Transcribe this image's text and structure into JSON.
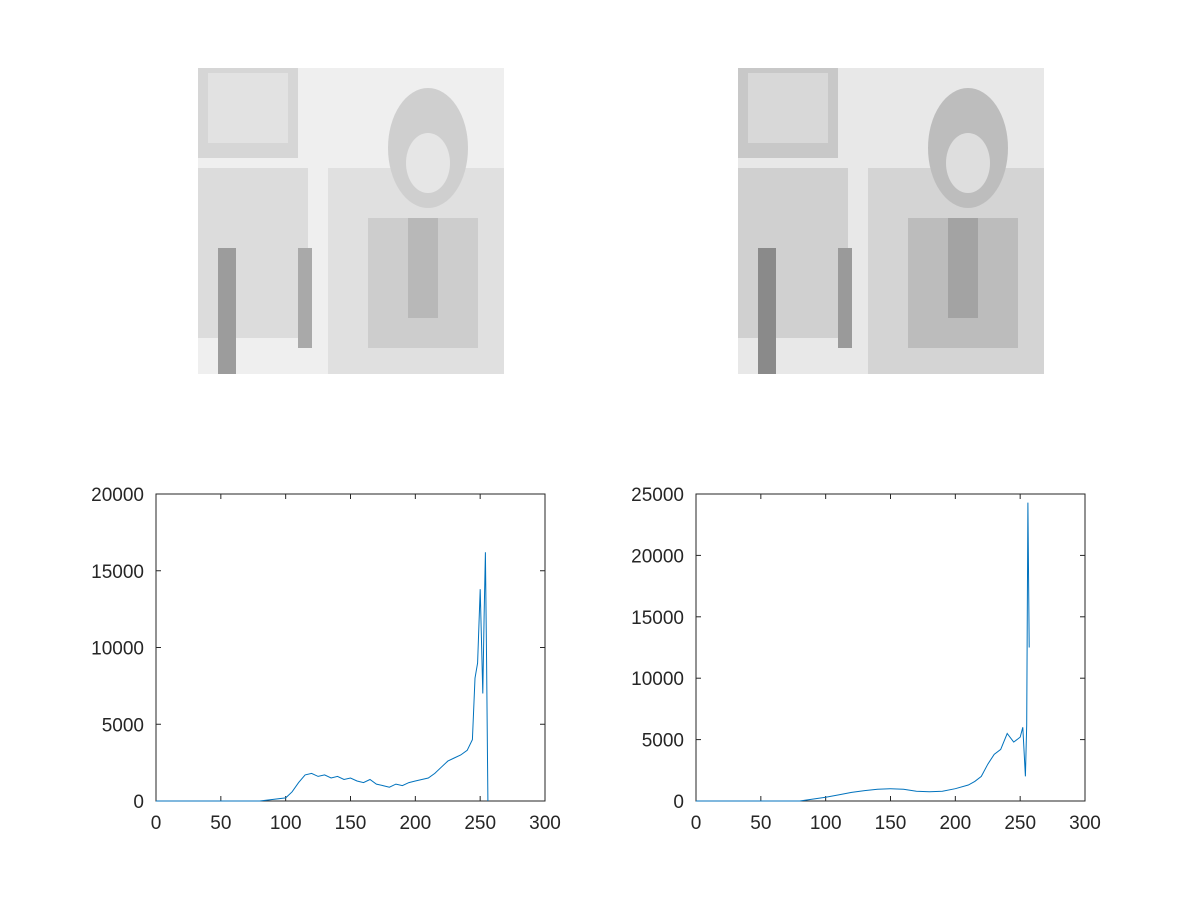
{
  "figure": {
    "background": "#ffffff",
    "line_color": "#0072bd",
    "axis_color": "#262626"
  },
  "images": [
    {
      "name": "original-image",
      "content": "grayscale photo of seated woman with headscarf (low-contrast, washed out)",
      "tone": "#d9d9d9"
    },
    {
      "name": "equalized-image",
      "content": "grayscale photo of seated woman with headscarf (histogram equalized, edge-enhanced)",
      "tone": "#cfcfcf"
    }
  ],
  "chart_data": [
    {
      "type": "line",
      "title": "",
      "xlabel": "",
      "ylabel": "",
      "xlim": [
        0,
        300
      ],
      "ylim": [
        0,
        20000
      ],
      "xticks": [
        0,
        50,
        100,
        150,
        200,
        250,
        300
      ],
      "yticks": [
        0,
        5000,
        10000,
        15000,
        20000
      ],
      "grid": false,
      "series": [
        {
          "x": [
            0,
            80,
            100,
            105,
            110,
            115,
            120,
            125,
            130,
            135,
            140,
            145,
            150,
            155,
            160,
            165,
            170,
            175,
            180,
            185,
            190,
            195,
            200,
            205,
            210,
            215,
            220,
            225,
            230,
            235,
            240,
            244,
            246,
            248,
            250,
            252,
            253,
            254,
            255,
            256
          ],
          "y": [
            0,
            0,
            200,
            600,
            1200,
            1700,
            1800,
            1600,
            1700,
            1500,
            1600,
            1400,
            1500,
            1300,
            1200,
            1400,
            1100,
            1000,
            900,
            1100,
            1000,
            1200,
            1300,
            1400,
            1500,
            1800,
            2200,
            2600,
            2800,
            3000,
            3300,
            4000,
            8000,
            9000,
            13800,
            7000,
            12000,
            16200,
            9000,
            0
          ]
        }
      ]
    },
    {
      "type": "line",
      "title": "",
      "xlabel": "",
      "ylabel": "",
      "xlim": [
        0,
        300
      ],
      "ylim": [
        0,
        25000
      ],
      "xticks": [
        0,
        50,
        100,
        150,
        200,
        250,
        300
      ],
      "yticks": [
        0,
        5000,
        10000,
        15000,
        20000,
        25000
      ],
      "grid": false,
      "series": [
        {
          "x": [
            0,
            80,
            100,
            110,
            120,
            130,
            140,
            150,
            160,
            170,
            180,
            190,
            200,
            210,
            215,
            220,
            225,
            230,
            235,
            240,
            245,
            250,
            252,
            254,
            255,
            256,
            257
          ],
          "y": [
            0,
            0,
            300,
            500,
            700,
            850,
            950,
            1000,
            950,
            800,
            750,
            800,
            1000,
            1300,
            1600,
            2000,
            3000,
            3800,
            4200,
            5500,
            4800,
            5200,
            6000,
            2000,
            6200,
            24300,
            12500
          ]
        }
      ]
    }
  ]
}
